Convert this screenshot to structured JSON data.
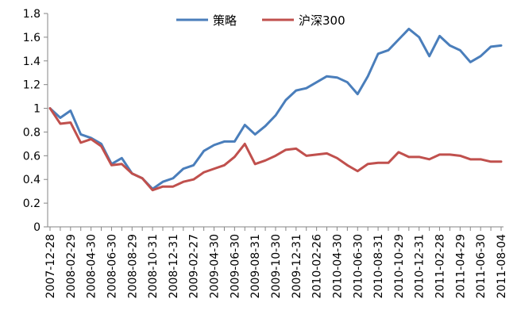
{
  "chart_data": {
    "type": "line",
    "title": "",
    "xlabel": "",
    "ylabel": "",
    "ylim": [
      0,
      1.8
    ],
    "yticks": [
      "0",
      "0.2",
      "0.4",
      "0.6",
      "0.8",
      "1",
      "1.2",
      "1.4",
      "1.6",
      "1.8"
    ],
    "grid": false,
    "legend_position": "top-center",
    "xtick_labels": [
      "2007-12-28",
      "2008-02-29",
      "2008-04-30",
      "2008-06-30",
      "2008-08-29",
      "2008-10-31",
      "2008-12-31",
      "2009-02-27",
      "2009-04-30",
      "2009-06-30",
      "2009-08-31",
      "2009-10-30",
      "2009-12-31",
      "2010-02-26",
      "2010-04-30",
      "2010-06-30",
      "2010-08-31",
      "2010-10-29",
      "2010-12-31",
      "2011-02-28",
      "2011-04-29",
      "2011-06-30",
      "2011-08-04"
    ],
    "x": [
      "2007-12-28",
      "2008-01",
      "2008-02-29",
      "2008-03",
      "2008-04-30",
      "2008-05",
      "2008-06-30",
      "2008-07",
      "2008-08-29",
      "2008-09",
      "2008-10-31",
      "2008-11",
      "2008-12-31",
      "2009-01",
      "2009-02-27",
      "2009-03",
      "2009-04-30",
      "2009-05",
      "2009-06-30",
      "2009-07",
      "2009-08-31",
      "2009-09",
      "2009-10-30",
      "2009-11",
      "2009-12-31",
      "2010-01",
      "2010-02-26",
      "2010-03",
      "2010-04-30",
      "2010-05",
      "2010-06-30",
      "2010-07",
      "2010-08-31",
      "2010-09",
      "2010-10-29",
      "2010-11",
      "2010-12-31",
      "2011-01",
      "2011-02-28",
      "2011-03",
      "2011-04-29",
      "2011-05",
      "2011-06-30",
      "2011-07",
      "2011-08-04"
    ],
    "series": [
      {
        "name": "策略",
        "color": "#4a7ebb",
        "values": [
          1.0,
          0.92,
          0.98,
          0.78,
          0.75,
          0.7,
          0.53,
          0.58,
          0.45,
          0.41,
          0.32,
          0.38,
          0.41,
          0.49,
          0.52,
          0.64,
          0.69,
          0.72,
          0.72,
          0.86,
          0.78,
          0.85,
          0.94,
          1.07,
          1.15,
          1.17,
          1.22,
          1.27,
          1.26,
          1.22,
          1.12,
          1.27,
          1.46,
          1.49,
          1.58,
          1.67,
          1.6,
          1.44,
          1.61,
          1.53,
          1.49,
          1.39,
          1.44,
          1.52,
          1.53
        ]
      },
      {
        "name": "沪深300",
        "color": "#c0504d",
        "values": [
          1.0,
          0.87,
          0.88,
          0.71,
          0.74,
          0.68,
          0.52,
          0.53,
          0.45,
          0.41,
          0.31,
          0.34,
          0.34,
          0.38,
          0.4,
          0.46,
          0.49,
          0.52,
          0.59,
          0.7,
          0.53,
          0.56,
          0.6,
          0.65,
          0.66,
          0.6,
          0.61,
          0.62,
          0.58,
          0.52,
          0.47,
          0.53,
          0.54,
          0.54,
          0.63,
          0.59,
          0.59,
          0.57,
          0.61,
          0.61,
          0.6,
          0.57,
          0.57,
          0.55,
          0.55
        ]
      }
    ]
  }
}
